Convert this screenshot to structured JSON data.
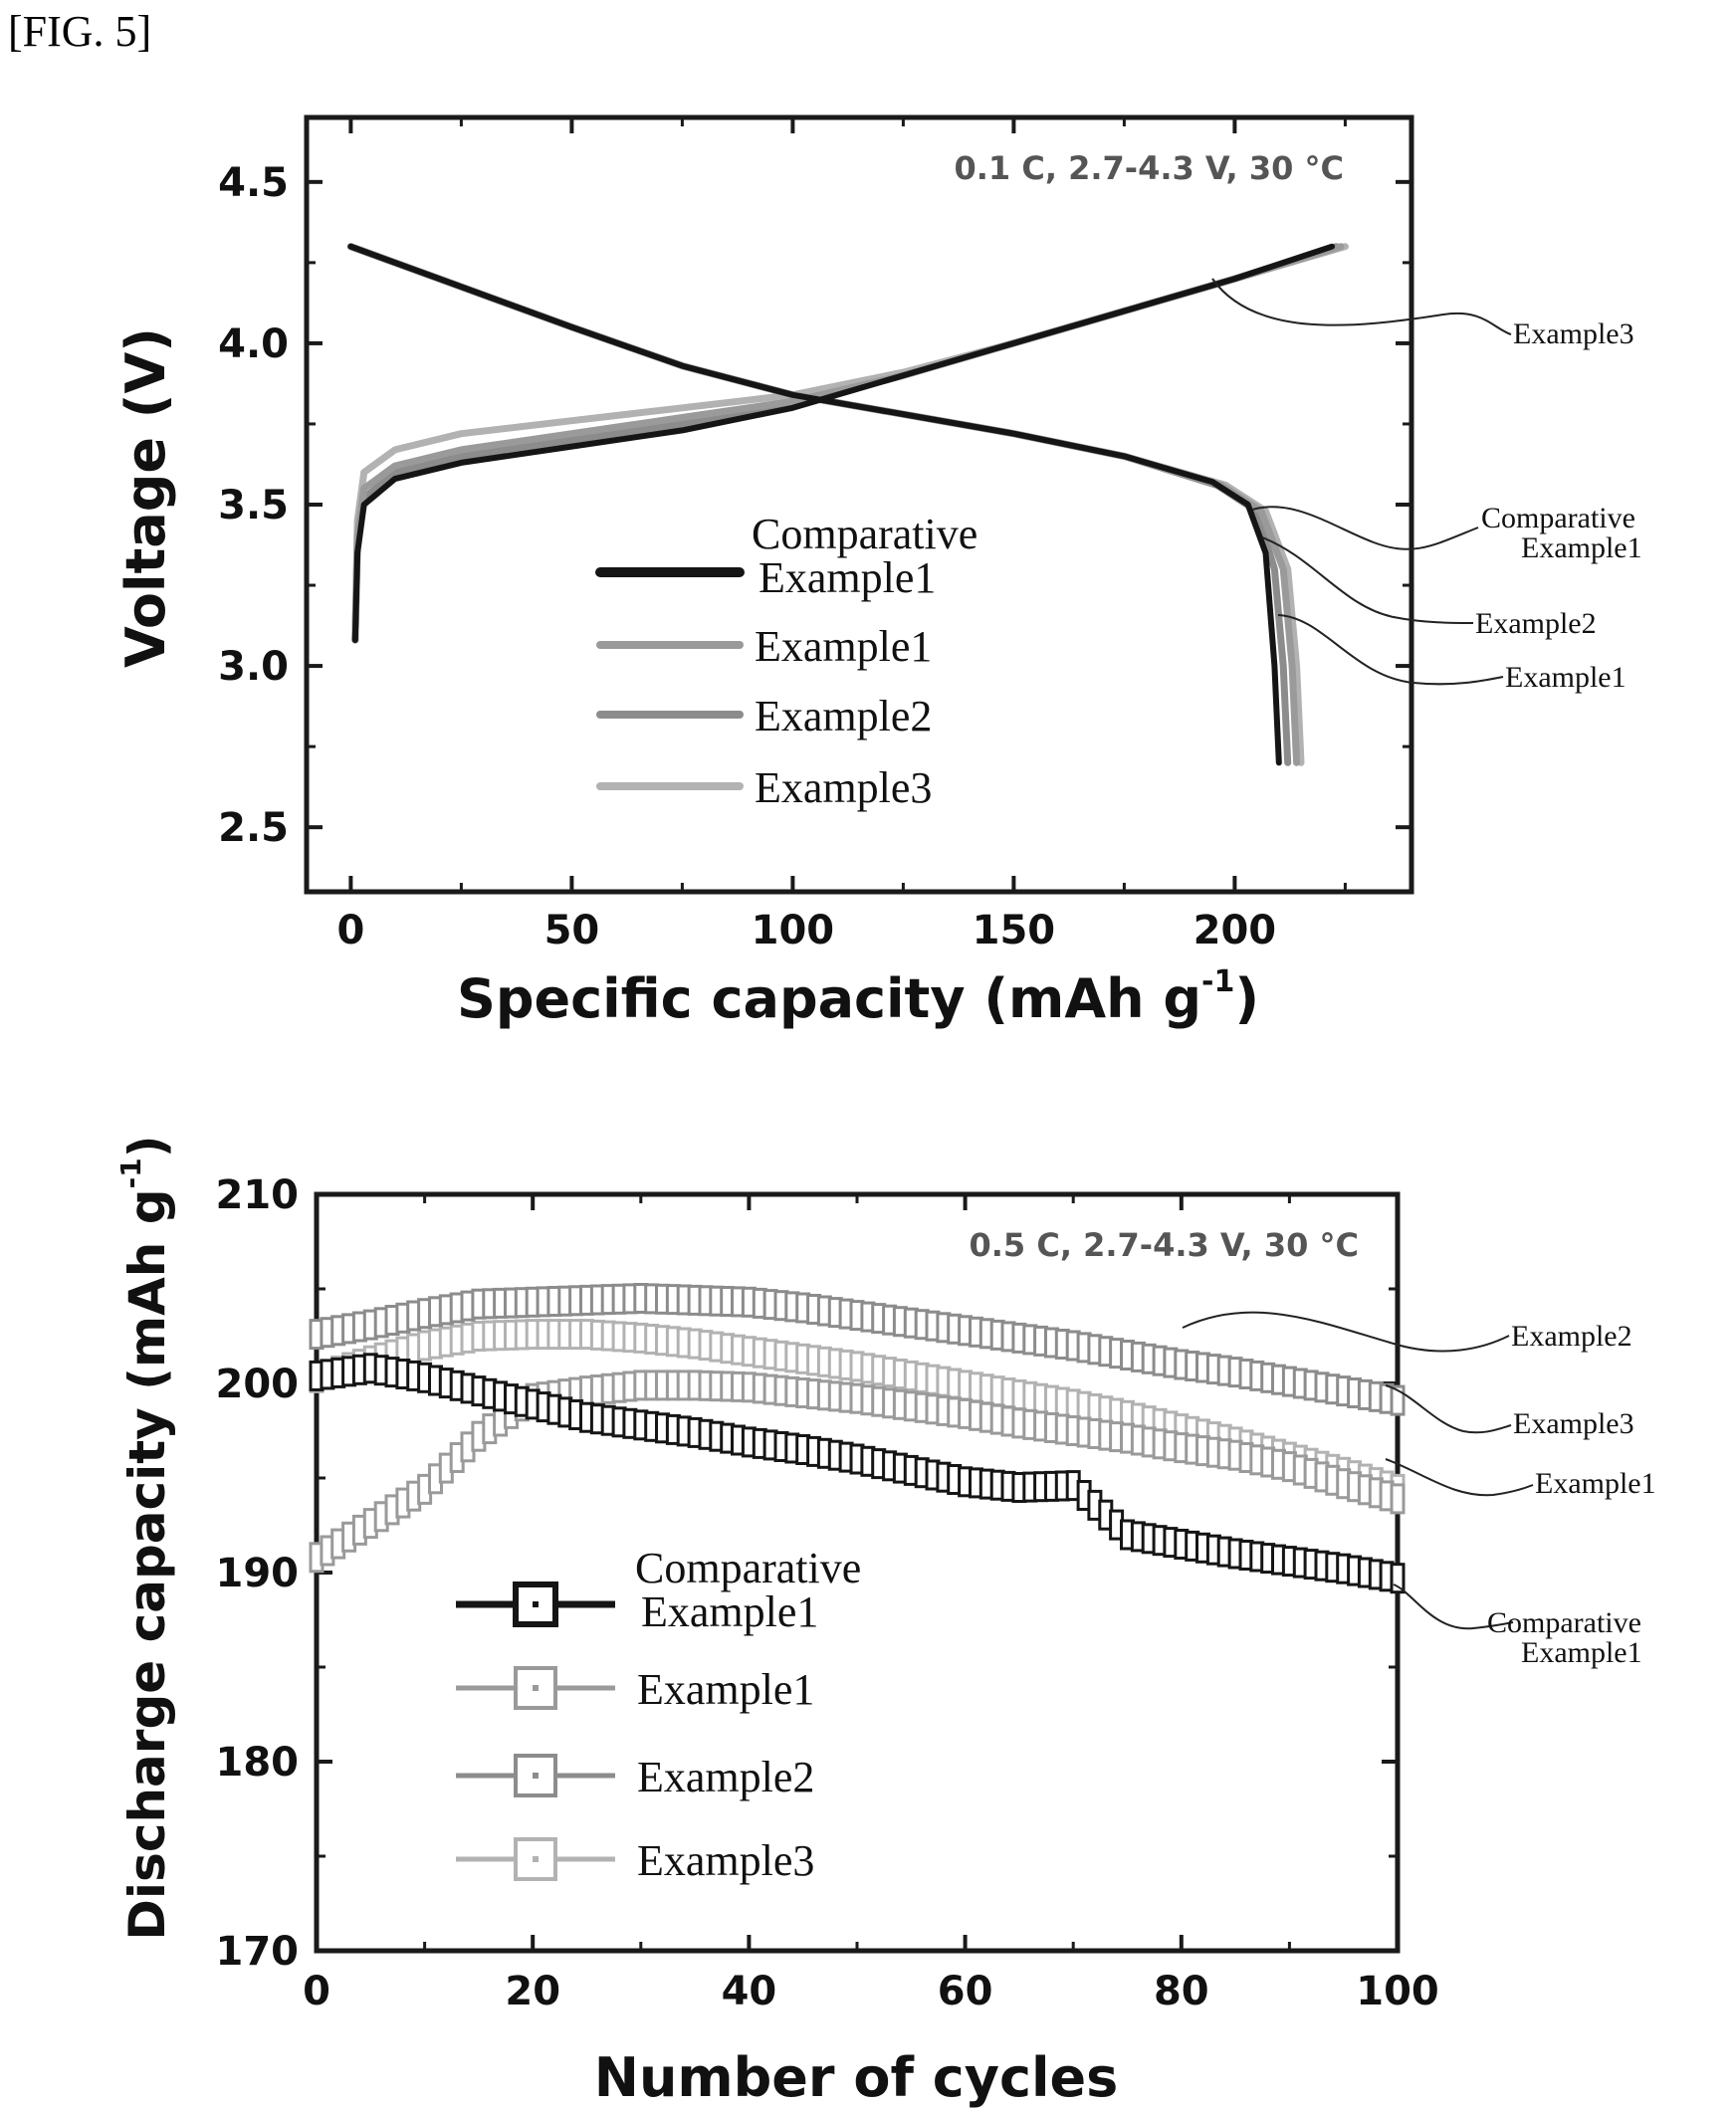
{
  "figure_label": "[FIG. 5]",
  "colors": {
    "comparative": "#151515",
    "example1": "#9a9a9a",
    "example2": "#8c8c8c",
    "example3": "#b2b2b2"
  },
  "chart_data": [
    {
      "type": "line",
      "condition": "0.1 C, 2.7-4.3 V, 30 °C",
      "xlabel": "Specific capacity (mAh g",
      "xlabel_sup": "-1",
      "xlabel_close": ")",
      "ylabel": "Voltage (V)",
      "xlim": [
        -10,
        240
      ],
      "ylim": [
        2.3,
        4.7
      ],
      "xticks": [
        "0",
        "50",
        "100",
        "150",
        "200"
      ],
      "yticks": [
        "2.5",
        "3.0",
        "3.5",
        "4.0",
        "4.5"
      ],
      "legend": [
        {
          "line1": "Comparative",
          "line2": "Example1"
        },
        {
          "line1": "Example1",
          "line2": ""
        },
        {
          "line1": "Example2",
          "line2": ""
        },
        {
          "line1": "Example3",
          "line2": ""
        }
      ],
      "callouts": [
        {
          "line1": "Example3",
          "line2": ""
        },
        {
          "line1": "Comparative",
          "line2": "Example1"
        },
        {
          "line1": "Example2",
          "line2": ""
        },
        {
          "line1": "Example1",
          "line2": ""
        }
      ],
      "series": [
        {
          "name": "Comparative Example1",
          "charge": [
            [
              1,
              3.08
            ],
            [
              1.5,
              3.35
            ],
            [
              3,
              3.5
            ],
            [
              10,
              3.58
            ],
            [
              25,
              3.63
            ],
            [
              50,
              3.68
            ],
            [
              75,
              3.73
            ],
            [
              100,
              3.8
            ],
            [
              125,
              3.9
            ],
            [
              150,
              4.0
            ],
            [
              175,
              4.1
            ],
            [
              200,
              4.2
            ],
            [
              222,
              4.3
            ]
          ],
          "discharge": [
            [
              0,
              4.3
            ],
            [
              20,
              4.2
            ],
            [
              50,
              4.05
            ],
            [
              75,
              3.93
            ],
            [
              100,
              3.84
            ],
            [
              125,
              3.78
            ],
            [
              150,
              3.72
            ],
            [
              175,
              3.65
            ],
            [
              195,
              3.57
            ],
            [
              203,
              3.5
            ],
            [
              207,
              3.35
            ],
            [
              209,
              3.0
            ],
            [
              210,
              2.7
            ]
          ]
        },
        {
          "name": "Example1",
          "charge": [
            [
              1,
              3.08
            ],
            [
              1.5,
              3.4
            ],
            [
              3,
              3.55
            ],
            [
              10,
              3.62
            ],
            [
              25,
              3.67
            ],
            [
              50,
              3.72
            ],
            [
              75,
              3.77
            ],
            [
              100,
              3.82
            ],
            [
              125,
              3.9
            ],
            [
              150,
              4.0
            ],
            [
              175,
              4.1
            ],
            [
              200,
              4.2
            ],
            [
              224,
              4.3
            ]
          ],
          "discharge": [
            [
              0,
              4.3
            ],
            [
              20,
              4.2
            ],
            [
              50,
              4.05
            ],
            [
              75,
              3.93
            ],
            [
              100,
              3.84
            ],
            [
              125,
              3.78
            ],
            [
              150,
              3.72
            ],
            [
              175,
              3.65
            ],
            [
              197,
              3.56
            ],
            [
              206,
              3.48
            ],
            [
              211,
              3.3
            ],
            [
              213,
              3.0
            ],
            [
              214,
              2.7
            ]
          ]
        },
        {
          "name": "Example2",
          "charge": [
            [
              1,
              3.08
            ],
            [
              1.5,
              3.38
            ],
            [
              3,
              3.52
            ],
            [
              10,
              3.6
            ],
            [
              25,
              3.65
            ],
            [
              50,
              3.7
            ],
            [
              75,
              3.75
            ],
            [
              100,
              3.81
            ],
            [
              125,
              3.9
            ],
            [
              150,
              4.0
            ],
            [
              175,
              4.1
            ],
            [
              200,
              4.2
            ],
            [
              223,
              4.3
            ]
          ],
          "discharge": [
            [
              0,
              4.3
            ],
            [
              20,
              4.2
            ],
            [
              50,
              4.05
            ],
            [
              75,
              3.93
            ],
            [
              100,
              3.84
            ],
            [
              125,
              3.78
            ],
            [
              150,
              3.72
            ],
            [
              175,
              3.65
            ],
            [
              196,
              3.56
            ],
            [
              205,
              3.48
            ],
            [
              209,
              3.3
            ],
            [
              211,
              3.0
            ],
            [
              212,
              2.7
            ]
          ]
        },
        {
          "name": "Example3",
          "charge": [
            [
              1,
              3.08
            ],
            [
              1.5,
              3.45
            ],
            [
              3,
              3.6
            ],
            [
              10,
              3.67
            ],
            [
              25,
              3.72
            ],
            [
              50,
              3.76
            ],
            [
              75,
              3.8
            ],
            [
              100,
              3.84
            ],
            [
              125,
              3.91
            ],
            [
              150,
              4.0
            ],
            [
              175,
              4.1
            ],
            [
              200,
              4.2
            ],
            [
              225,
              4.3
            ]
          ],
          "discharge": [
            [
              0,
              4.3
            ],
            [
              20,
              4.2
            ],
            [
              50,
              4.05
            ],
            [
              75,
              3.93
            ],
            [
              100,
              3.84
            ],
            [
              125,
              3.78
            ],
            [
              150,
              3.72
            ],
            [
              175,
              3.65
            ],
            [
              198,
              3.56
            ],
            [
              207,
              3.48
            ],
            [
              212,
              3.3
            ],
            [
              214,
              3.0
            ],
            [
              215,
              2.7
            ]
          ]
        }
      ]
    },
    {
      "type": "line",
      "condition": "0.5 C, 2.7-4.3 V, 30 °C",
      "xlabel": "Number of cycles",
      "ylabel": "Discharge capacity (mAh g",
      "ylabel_sup": "-1",
      "ylabel_close": ")",
      "xlim": [
        0,
        100
      ],
      "ylim": [
        170,
        210
      ],
      "xticks": [
        "0",
        "20",
        "40",
        "60",
        "80",
        "100"
      ],
      "yticks": [
        "170",
        "180",
        "190",
        "200",
        "210"
      ],
      "legend": [
        {
          "line1": "Comparative",
          "line2": "Example1"
        },
        {
          "line1": "Example1",
          "line2": ""
        },
        {
          "line1": "Example2",
          "line2": ""
        },
        {
          "line1": "Example3",
          "line2": ""
        }
      ],
      "callouts": [
        {
          "line1": "Example2",
          "line2": ""
        },
        {
          "line1": "Example3",
          "line2": ""
        },
        {
          "line1": "Example1",
          "line2": ""
        },
        {
          "line1": "Comparative",
          "line2": "Example1"
        }
      ],
      "series": [
        {
          "name": "Comparative Example1",
          "points": [
            [
              0,
              200.4
            ],
            [
              5,
              200.8
            ],
            [
              10,
              200.3
            ],
            [
              15,
              199.6
            ],
            [
              20,
              198.9
            ],
            [
              25,
              198.2
            ],
            [
              30,
              197.8
            ],
            [
              35,
              197.4
            ],
            [
              40,
              196.9
            ],
            [
              45,
              196.5
            ],
            [
              50,
              196.0
            ],
            [
              55,
              195.4
            ],
            [
              60,
              194.8
            ],
            [
              65,
              194.5
            ],
            [
              70,
              194.6
            ],
            [
              75,
              192.0
            ],
            [
              80,
              191.5
            ],
            [
              85,
              191.0
            ],
            [
              90,
              190.6
            ],
            [
              95,
              190.2
            ],
            [
              100,
              189.7
            ]
          ]
        },
        {
          "name": "Example1",
          "points": [
            [
              0,
              190.8
            ],
            [
              5,
              192.6
            ],
            [
              10,
              194.4
            ],
            [
              15,
              197.2
            ],
            [
              20,
              199.2
            ],
            [
              25,
              199.6
            ],
            [
              30,
              199.9
            ],
            [
              35,
              199.9
            ],
            [
              40,
              199.8
            ],
            [
              45,
              199.5
            ],
            [
              50,
              199.2
            ],
            [
              55,
              198.8
            ],
            [
              60,
              198.4
            ],
            [
              65,
              197.9
            ],
            [
              70,
              197.5
            ],
            [
              75,
              197.1
            ],
            [
              80,
              196.6
            ],
            [
              85,
              196.2
            ],
            [
              90,
              195.6
            ],
            [
              95,
              194.7
            ],
            [
              100,
              193.9
            ]
          ]
        },
        {
          "name": "Example2",
          "points": [
            [
              0,
              202.6
            ],
            [
              5,
              203.1
            ],
            [
              10,
              203.7
            ],
            [
              15,
              204.2
            ],
            [
              20,
              204.3
            ],
            [
              25,
              204.4
            ],
            [
              30,
              204.5
            ],
            [
              35,
              204.4
            ],
            [
              40,
              204.3
            ],
            [
              45,
              204.0
            ],
            [
              50,
              203.6
            ],
            [
              55,
              203.2
            ],
            [
              60,
              202.8
            ],
            [
              65,
              202.4
            ],
            [
              70,
              202.0
            ],
            [
              75,
              201.5
            ],
            [
              80,
              201.0
            ],
            [
              85,
              200.6
            ],
            [
              90,
              200.1
            ],
            [
              95,
              199.6
            ],
            [
              100,
              199.1
            ]
          ]
        },
        {
          "name": "Example3",
          "points": [
            [
              0,
              200.3
            ],
            [
              5,
              201.2
            ],
            [
              10,
              202.0
            ],
            [
              15,
              202.5
            ],
            [
              20,
              202.6
            ],
            [
              25,
              202.6
            ],
            [
              30,
              202.4
            ],
            [
              35,
              202.1
            ],
            [
              40,
              201.7
            ],
            [
              45,
              201.3
            ],
            [
              50,
              200.9
            ],
            [
              55,
              200.4
            ],
            [
              60,
              199.9
            ],
            [
              65,
              199.4
            ],
            [
              70,
              198.9
            ],
            [
              75,
              198.3
            ],
            [
              80,
              197.6
            ],
            [
              85,
              196.9
            ],
            [
              90,
              196.1
            ],
            [
              95,
              195.3
            ],
            [
              100,
              194.4
            ]
          ]
        }
      ]
    }
  ]
}
